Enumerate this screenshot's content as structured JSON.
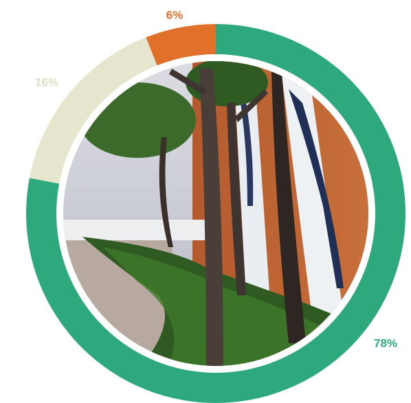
{
  "chart_data": {
    "type": "donut",
    "values": [
      78,
      16,
      6
    ],
    "value_labels": [
      "78%",
      "16%",
      "6%"
    ],
    "colors": [
      "#2ea97e",
      "#e6e5cd",
      "#e0702a"
    ],
    "label_colors": [
      "#2ea97e",
      "#deddc3",
      "#e0702a"
    ]
  }
}
